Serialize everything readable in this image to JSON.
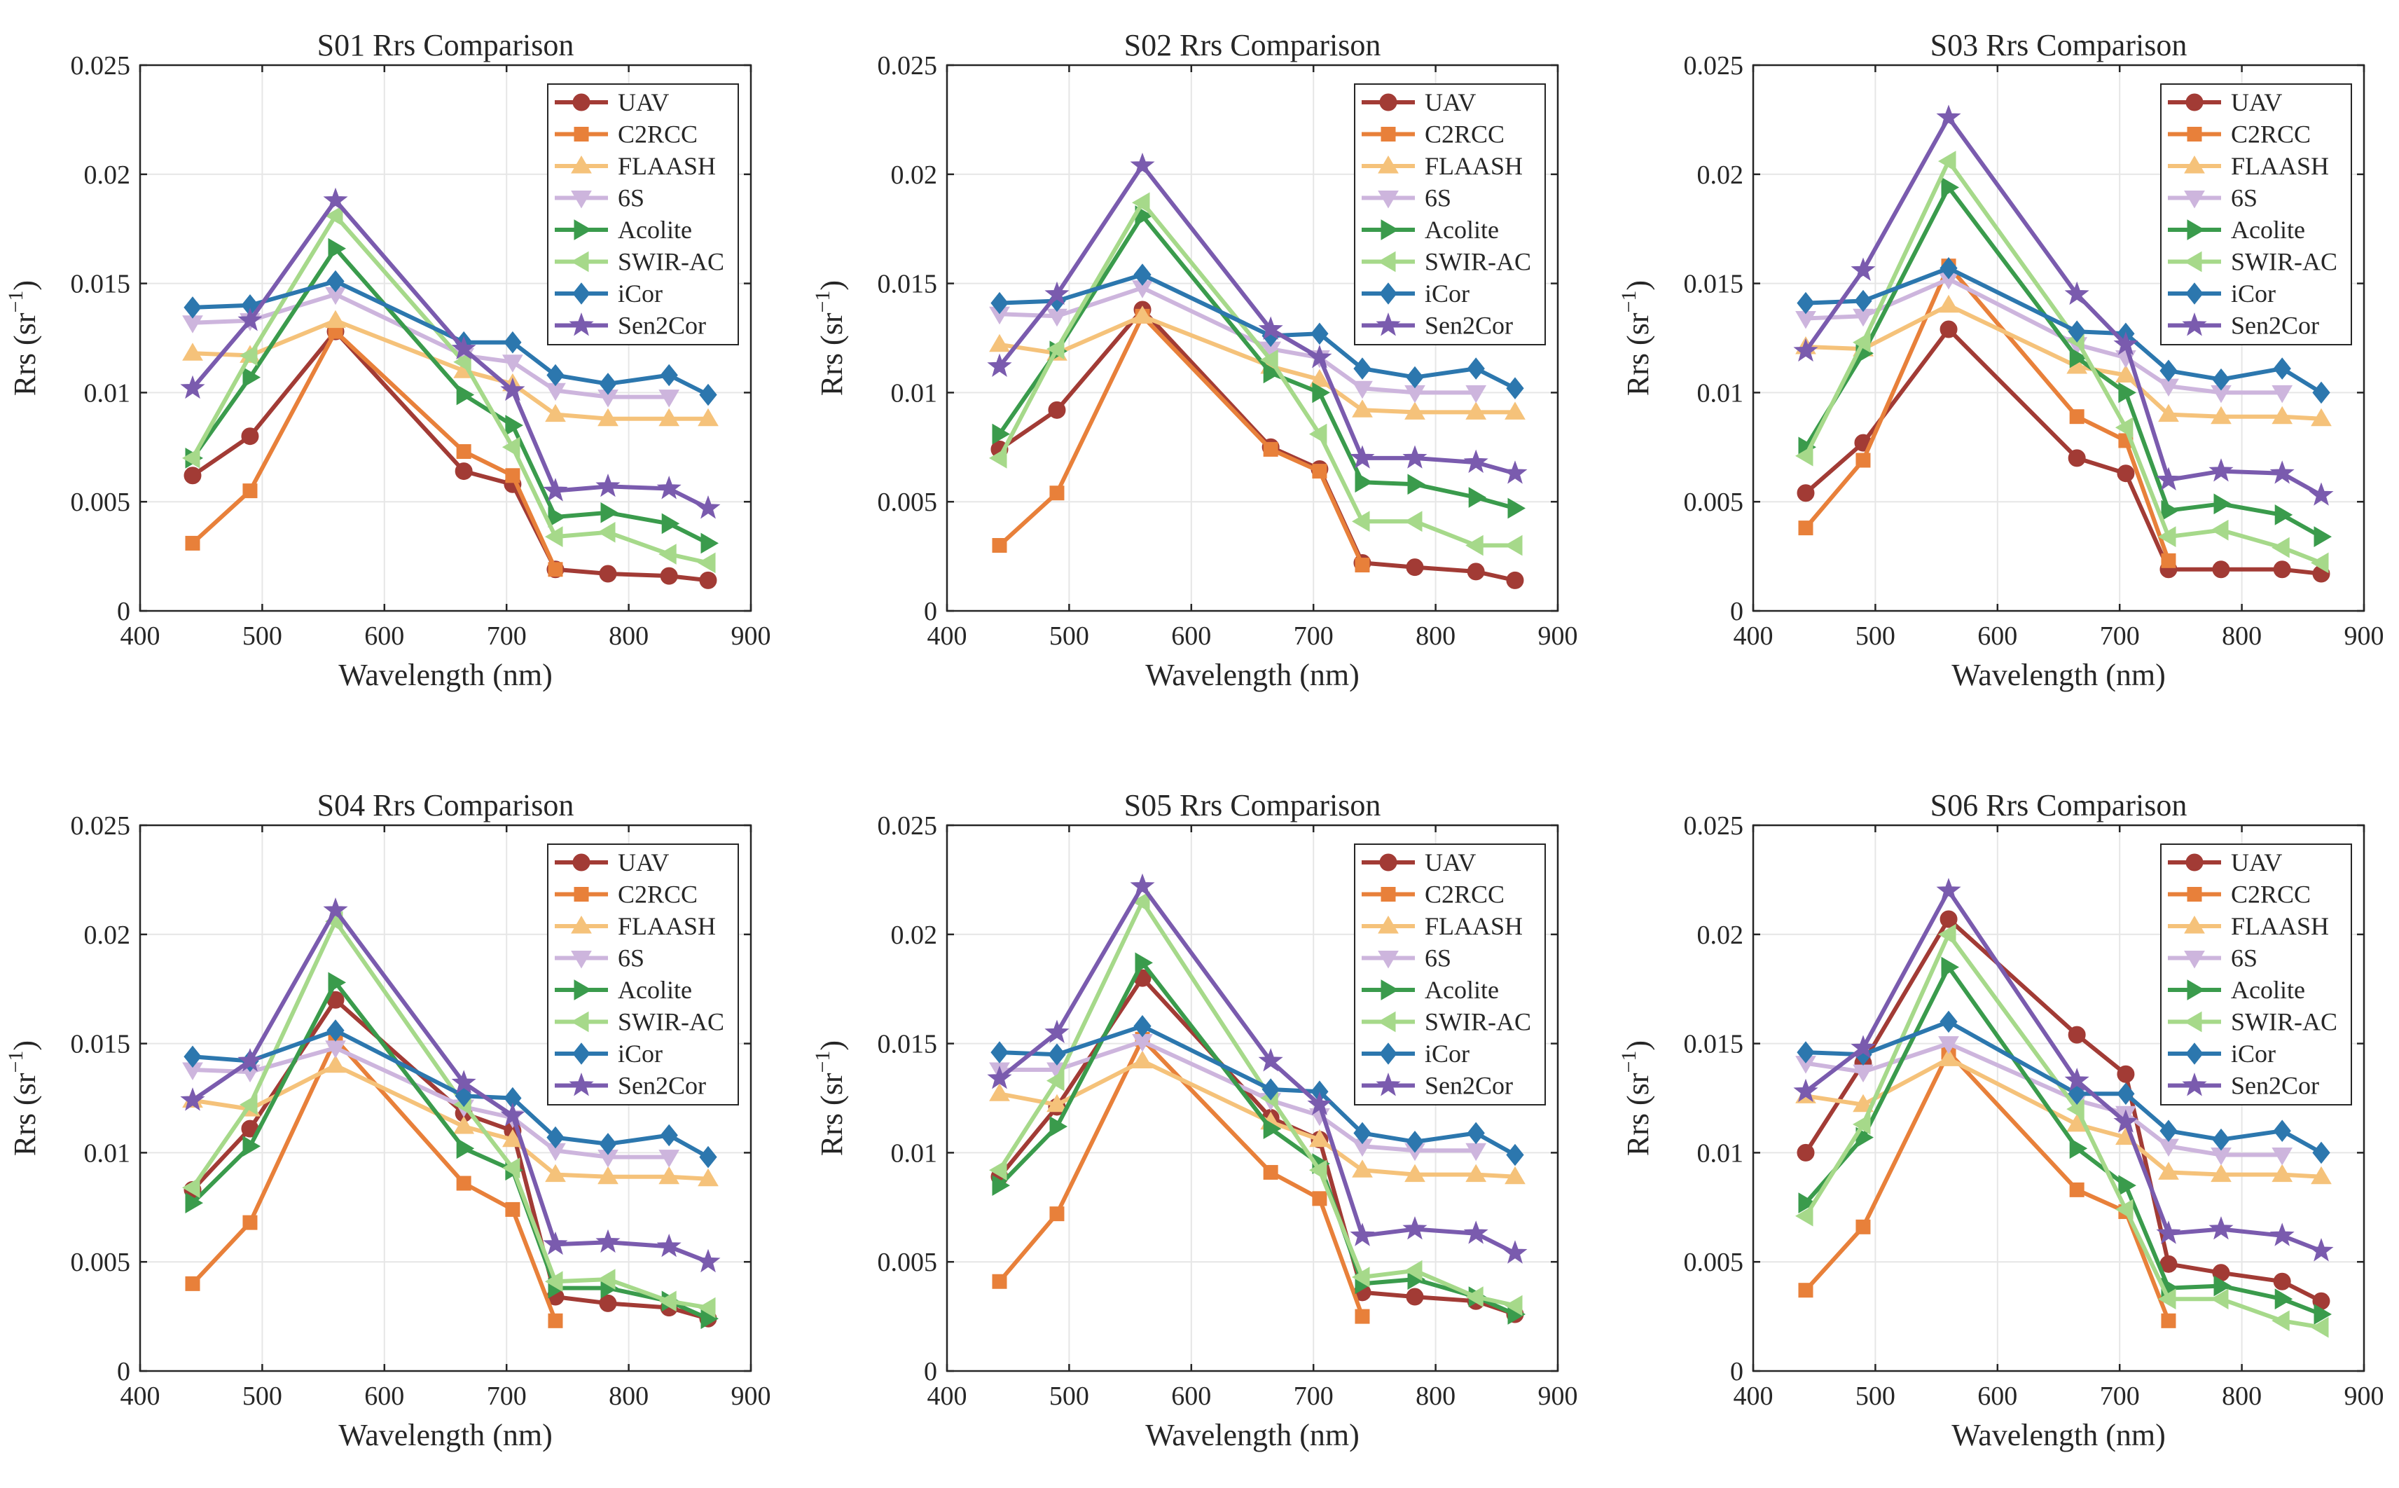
{
  "figure": {
    "styles": [
      {
        "name": "UAV",
        "color": "#A23B35",
        "marker": "circle"
      },
      {
        "name": "C2RCC",
        "color": "#E8803A",
        "marker": "square"
      },
      {
        "name": "FLAASH",
        "color": "#F5C27A",
        "marker": "triangle-up"
      },
      {
        "name": "6S",
        "color": "#CDB5DD",
        "marker": "triangle-down"
      },
      {
        "name": "Acolite",
        "color": "#3A9B4C",
        "marker": "triangle-right"
      },
      {
        "name": "SWIR-AC",
        "color": "#A6D98A",
        "marker": "triangle-left"
      },
      {
        "name": "iCor",
        "color": "#2C77AE",
        "marker": "diamond"
      },
      {
        "name": "Sen2Cor",
        "color": "#7A5BAE",
        "marker": "star"
      }
    ]
  },
  "chart_data": [
    {
      "type": "line",
      "title": "S01 Rrs Comparison",
      "xlabel": "Wavelength (nm)",
      "ylabel": "Rrs (sr",
      "ylabel_sup": "−1",
      "ylabel_close": ")",
      "xlim": [
        400,
        900
      ],
      "ylim": [
        0,
        0.025
      ],
      "xticks": [
        "400",
        "500",
        "600",
        "700",
        "800",
        "900"
      ],
      "yticks": [
        "0",
        "0.005",
        "0.01",
        "0.015",
        "0.02",
        "0.025"
      ],
      "x": [
        443,
        490,
        560,
        665,
        705,
        740,
        783,
        833,
        865
      ],
      "series": [
        {
          "name": "UAV",
          "values": [
            0.0062,
            0.008,
            0.0128,
            0.0064,
            0.0058,
            0.0019,
            0.0017,
            0.0016,
            0.0014
          ]
        },
        {
          "name": "C2RCC",
          "values": [
            0.0031,
            0.0055,
            0.0128,
            0.0073,
            0.0062,
            0.0019,
            null,
            null,
            null
          ]
        },
        {
          "name": "FLAASH",
          "values": [
            0.0118,
            0.0117,
            0.0133,
            0.011,
            0.0104,
            0.009,
            0.0088,
            0.0088,
            0.0088
          ]
        },
        {
          "name": "6S",
          "values": [
            0.0132,
            0.0133,
            0.0145,
            0.0117,
            0.0114,
            0.0101,
            0.0098,
            0.0098,
            null
          ]
        },
        {
          "name": "Acolite",
          "values": [
            0.007,
            0.0107,
            0.0166,
            0.0099,
            0.0085,
            0.0043,
            0.0045,
            0.004,
            0.0031
          ]
        },
        {
          "name": "SWIR-AC",
          "values": [
            0.007,
            0.0117,
            0.0181,
            0.0114,
            0.0075,
            0.0034,
            0.0036,
            0.0026,
            0.0022
          ]
        },
        {
          "name": "iCor",
          "values": [
            0.0139,
            0.014,
            0.0151,
            0.0123,
            0.0123,
            0.0108,
            0.0104,
            0.0108,
            0.0099
          ]
        },
        {
          "name": "Sen2Cor",
          "values": [
            0.0102,
            0.0133,
            0.0188,
            0.012,
            0.0101,
            0.0055,
            0.0057,
            0.0056,
            0.0047
          ]
        }
      ]
    },
    {
      "type": "line",
      "title": "S02 Rrs Comparison",
      "xlabel": "Wavelength (nm)",
      "ylabel": "Rrs (sr",
      "ylabel_sup": "−1",
      "ylabel_close": ")",
      "xlim": [
        400,
        900
      ],
      "ylim": [
        0,
        0.025
      ],
      "xticks": [
        "400",
        "500",
        "600",
        "700",
        "800",
        "900"
      ],
      "yticks": [
        "0",
        "0.005",
        "0.01",
        "0.015",
        "0.02",
        "0.025"
      ],
      "x": [
        443,
        490,
        560,
        665,
        705,
        740,
        783,
        833,
        865
      ],
      "series": [
        {
          "name": "UAV",
          "values": [
            0.0074,
            0.0092,
            0.0138,
            0.0075,
            0.0065,
            0.0022,
            0.002,
            0.0018,
            0.0014
          ]
        },
        {
          "name": "C2RCC",
          "values": [
            0.003,
            0.0054,
            0.0135,
            0.0074,
            0.0064,
            0.0021,
            null,
            null,
            null
          ]
        },
        {
          "name": "FLAASH",
          "values": [
            0.0122,
            0.0118,
            0.0135,
            0.0112,
            0.0106,
            0.0092,
            0.0091,
            0.0091,
            0.0091
          ]
        },
        {
          "name": "6S",
          "values": [
            0.0136,
            0.0135,
            0.0148,
            0.012,
            0.0116,
            0.0102,
            0.01,
            0.01,
            null
          ]
        },
        {
          "name": "Acolite",
          "values": [
            0.0081,
            0.0119,
            0.0181,
            0.0109,
            0.01,
            0.0059,
            0.0058,
            0.0052,
            0.0047
          ]
        },
        {
          "name": "SWIR-AC",
          "values": [
            0.007,
            0.012,
            0.0187,
            0.0115,
            0.0081,
            0.0041,
            0.0041,
            0.003,
            0.003
          ]
        },
        {
          "name": "iCor",
          "values": [
            0.0141,
            0.0142,
            0.0154,
            0.0126,
            0.0127,
            0.0111,
            0.0107,
            0.0111,
            0.0102
          ]
        },
        {
          "name": "Sen2Cor",
          "values": [
            0.0112,
            0.0145,
            0.0204,
            0.0129,
            0.0116,
            0.007,
            0.007,
            0.0068,
            0.0063
          ]
        }
      ]
    },
    {
      "type": "line",
      "title": "S03 Rrs Comparison",
      "xlabel": "Wavelength (nm)",
      "ylabel": "Rrs (sr",
      "ylabel_sup": "−1",
      "ylabel_close": ")",
      "xlim": [
        400,
        900
      ],
      "ylim": [
        0,
        0.025
      ],
      "xticks": [
        "400",
        "500",
        "600",
        "700",
        "800",
        "900"
      ],
      "yticks": [
        "0",
        "0.005",
        "0.01",
        "0.015",
        "0.02",
        "0.025"
      ],
      "x": [
        443,
        490,
        560,
        665,
        705,
        740,
        783,
        833,
        865
      ],
      "series": [
        {
          "name": "UAV",
          "values": [
            0.0054,
            0.0077,
            0.0129,
            0.007,
            0.0063,
            0.0019,
            0.0019,
            0.0019,
            0.0017
          ]
        },
        {
          "name": "C2RCC",
          "values": [
            0.0038,
            0.0069,
            0.0158,
            0.0089,
            0.0078,
            0.0023,
            null,
            null,
            null
          ]
        },
        {
          "name": "FLAASH",
          "values": [
            0.0121,
            0.012,
            0.014,
            0.0112,
            0.0108,
            0.009,
            0.0089,
            0.0089,
            0.0088
          ]
        },
        {
          "name": "6S",
          "values": [
            0.0134,
            0.0135,
            0.0152,
            0.0122,
            0.0116,
            0.0103,
            0.01,
            0.01,
            null
          ]
        },
        {
          "name": "Acolite",
          "values": [
            0.0075,
            0.0118,
            0.0194,
            0.0116,
            0.01,
            0.0046,
            0.0049,
            0.0044,
            0.0034
          ]
        },
        {
          "name": "SWIR-AC",
          "values": [
            0.0071,
            0.0123,
            0.0206,
            0.0124,
            0.0084,
            0.0034,
            0.0037,
            0.0029,
            0.0022
          ]
        },
        {
          "name": "iCor",
          "values": [
            0.0141,
            0.0142,
            0.0157,
            0.0128,
            0.0127,
            0.011,
            0.0106,
            0.0111,
            0.01
          ]
        },
        {
          "name": "Sen2Cor",
          "values": [
            0.0119,
            0.0156,
            0.0226,
            0.0145,
            0.0122,
            0.006,
            0.0064,
            0.0063,
            0.0053
          ]
        }
      ]
    },
    {
      "type": "line",
      "title": "S04 Rrs Comparison",
      "xlabel": "Wavelength (nm)",
      "ylabel": "Rrs (sr",
      "ylabel_sup": "−1",
      "ylabel_close": ")",
      "xlim": [
        400,
        900
      ],
      "ylim": [
        0,
        0.025
      ],
      "xticks": [
        "400",
        "500",
        "600",
        "700",
        "800",
        "900"
      ],
      "yticks": [
        "0",
        "0.005",
        "0.01",
        "0.015",
        "0.02",
        "0.025"
      ],
      "x": [
        443,
        490,
        560,
        665,
        705,
        740,
        783,
        833,
        865
      ],
      "series": [
        {
          "name": "UAV",
          "values": [
            0.0083,
            0.0111,
            0.017,
            0.0118,
            0.011,
            0.0034,
            0.0031,
            0.0029,
            0.0024
          ]
        },
        {
          "name": "C2RCC",
          "values": [
            0.004,
            0.0068,
            0.0152,
            0.0086,
            0.0074,
            0.0023,
            null,
            null,
            null
          ]
        },
        {
          "name": "FLAASH",
          "values": [
            0.0124,
            0.012,
            0.014,
            0.0112,
            0.0106,
            0.009,
            0.0089,
            0.0089,
            0.0088
          ]
        },
        {
          "name": "6S",
          "values": [
            0.0138,
            0.0137,
            0.0148,
            0.0121,
            0.0116,
            0.0101,
            0.0098,
            0.0098,
            null
          ]
        },
        {
          "name": "Acolite",
          "values": [
            0.0077,
            0.0103,
            0.0178,
            0.0102,
            0.0092,
            0.0038,
            0.0038,
            0.0032,
            0.0024
          ]
        },
        {
          "name": "SWIR-AC",
          "values": [
            0.0084,
            0.0122,
            0.0206,
            0.0122,
            0.0093,
            0.0041,
            0.0042,
            0.0032,
            0.0029
          ]
        },
        {
          "name": "iCor",
          "values": [
            0.0144,
            0.0142,
            0.0156,
            0.0126,
            0.0125,
            0.0107,
            0.0104,
            0.0108,
            0.0098
          ]
        },
        {
          "name": "Sen2Cor",
          "values": [
            0.0124,
            0.0142,
            0.0211,
            0.0132,
            0.0117,
            0.0058,
            0.0059,
            0.0057,
            0.005
          ]
        }
      ]
    },
    {
      "type": "line",
      "title": "S05 Rrs Comparison",
      "xlabel": "Wavelength (nm)",
      "ylabel": "Rrs (sr",
      "ylabel_sup": "−1",
      "ylabel_close": ")",
      "xlim": [
        400,
        900
      ],
      "ylim": [
        0,
        0.025
      ],
      "xticks": [
        "400",
        "500",
        "600",
        "700",
        "800",
        "900"
      ],
      "yticks": [
        "0",
        "0.005",
        "0.01",
        "0.015",
        "0.02",
        "0.025"
      ],
      "x": [
        443,
        490,
        560,
        665,
        705,
        740,
        783,
        833,
        865
      ],
      "series": [
        {
          "name": "UAV",
          "values": [
            0.0089,
            0.0121,
            0.018,
            0.0116,
            0.0106,
            0.0036,
            0.0034,
            0.0032,
            0.0026
          ]
        },
        {
          "name": "C2RCC",
          "values": [
            0.0041,
            0.0072,
            0.0152,
            0.0091,
            0.0079,
            0.0025,
            null,
            null,
            null
          ]
        },
        {
          "name": "FLAASH",
          "values": [
            0.0127,
            0.0122,
            0.0142,
            0.0114,
            0.0106,
            0.0092,
            0.009,
            0.009,
            0.0089
          ]
        },
        {
          "name": "6S",
          "values": [
            0.0138,
            0.0138,
            0.0151,
            0.0124,
            0.0117,
            0.0103,
            0.0101,
            0.0101,
            null
          ]
        },
        {
          "name": "Acolite",
          "values": [
            0.0085,
            0.0112,
            0.0187,
            0.0111,
            0.0095,
            0.004,
            0.0042,
            0.0034,
            0.0026
          ]
        },
        {
          "name": "SWIR-AC",
          "values": [
            0.0092,
            0.0133,
            0.0215,
            0.0125,
            0.0092,
            0.0043,
            0.0046,
            0.0034,
            0.003
          ]
        },
        {
          "name": "iCor",
          "values": [
            0.0146,
            0.0145,
            0.0158,
            0.0129,
            0.0128,
            0.0109,
            0.0105,
            0.0109,
            0.0099
          ]
        },
        {
          "name": "Sen2Cor",
          "values": [
            0.0134,
            0.0155,
            0.0222,
            0.0142,
            0.0122,
            0.0062,
            0.0065,
            0.0063,
            0.0054
          ]
        }
      ]
    },
    {
      "type": "line",
      "title": "S06 Rrs Comparison",
      "xlabel": "Wavelength (nm)",
      "ylabel": "Rrs (sr",
      "ylabel_sup": "−1",
      "ylabel_close": ")",
      "xlim": [
        400,
        900
      ],
      "ylim": [
        0,
        0.025
      ],
      "xticks": [
        "400",
        "500",
        "600",
        "700",
        "800",
        "900"
      ],
      "yticks": [
        "0",
        "0.005",
        "0.01",
        "0.015",
        "0.02",
        "0.025"
      ],
      "x": [
        443,
        490,
        560,
        665,
        705,
        740,
        783,
        833,
        865
      ],
      "series": [
        {
          "name": "UAV",
          "values": [
            0.01,
            0.0141,
            0.0207,
            0.0154,
            0.0136,
            0.0049,
            0.0045,
            0.0041,
            0.0032
          ]
        },
        {
          "name": "C2RCC",
          "values": [
            0.0037,
            0.0066,
            0.0146,
            0.0083,
            0.0073,
            0.0023,
            null,
            null,
            null
          ]
        },
        {
          "name": "FLAASH",
          "values": [
            0.0126,
            0.0122,
            0.0143,
            0.0113,
            0.0107,
            0.0091,
            0.009,
            0.009,
            0.0089
          ]
        },
        {
          "name": "6S",
          "values": [
            0.0141,
            0.0137,
            0.015,
            0.0124,
            0.0118,
            0.0103,
            0.0099,
            0.0099,
            null
          ]
        },
        {
          "name": "Acolite",
          "values": [
            0.0077,
            0.0107,
            0.0185,
            0.0102,
            0.0085,
            0.0038,
            0.0039,
            0.0033,
            0.0026
          ]
        },
        {
          "name": "SWIR-AC",
          "values": [
            0.0071,
            0.0113,
            0.02,
            0.012,
            0.0074,
            0.0033,
            0.0033,
            0.0023,
            0.002
          ]
        },
        {
          "name": "iCor",
          "values": [
            0.0146,
            0.0145,
            0.016,
            0.0127,
            0.0127,
            0.011,
            0.0106,
            0.011,
            0.01
          ]
        },
        {
          "name": "Sen2Cor",
          "values": [
            0.0128,
            0.0148,
            0.022,
            0.0133,
            0.0114,
            0.0063,
            0.0065,
            0.0062,
            0.0055
          ]
        }
      ]
    }
  ]
}
